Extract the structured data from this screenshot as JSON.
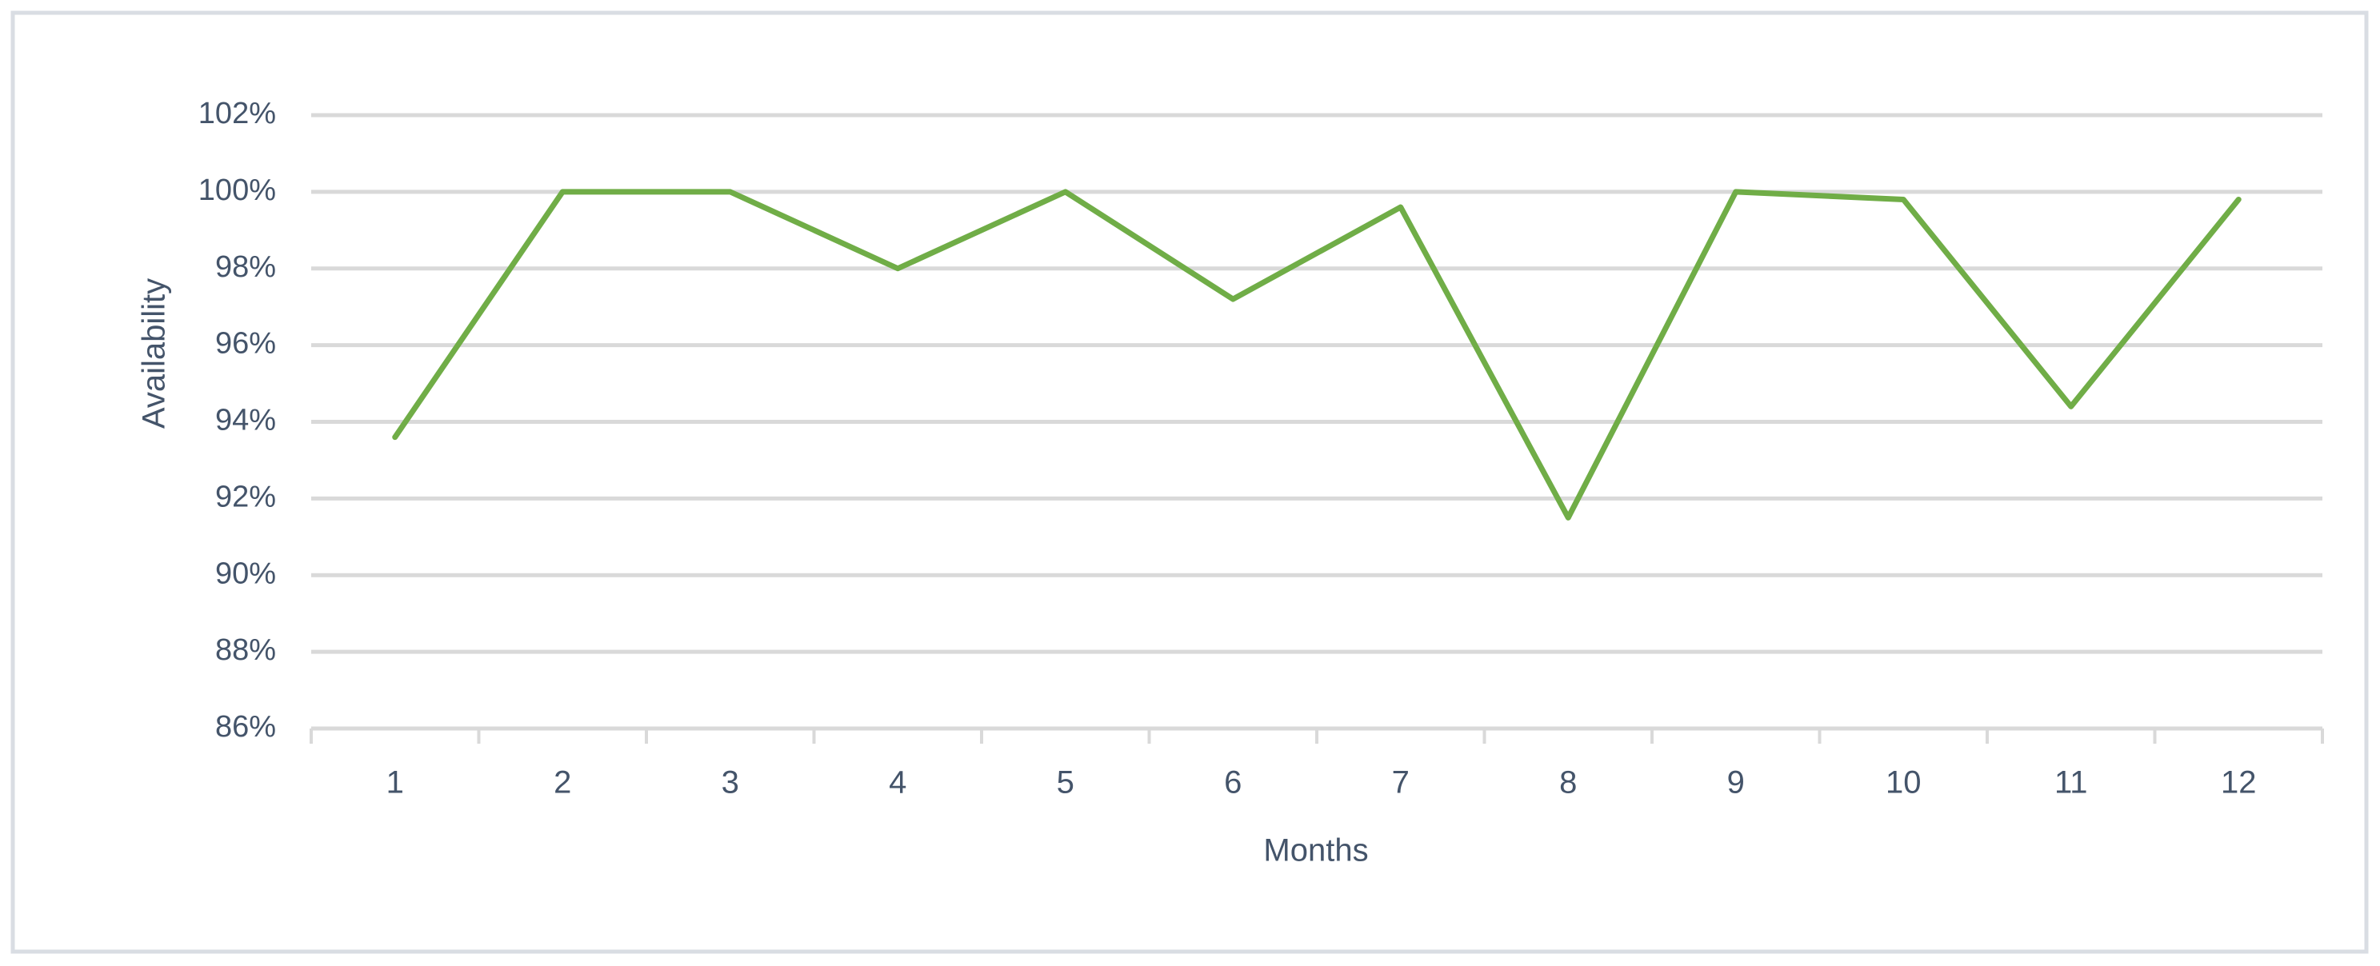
{
  "chart_data": {
    "type": "line",
    "x_label": "Months",
    "y_label": "Availability",
    "categories": [
      "1",
      "2",
      "3",
      "4",
      "5",
      "6",
      "7",
      "8",
      "9",
      "10",
      "11",
      "12"
    ],
    "values": [
      93.6,
      100,
      100,
      98,
      100,
      97.2,
      99.6,
      91.5,
      100,
      99.8,
      94.4,
      99.8
    ],
    "color": "#70ad47",
    "ylim": [
      86,
      102
    ],
    "yticks": [
      {
        "value": 86,
        "label": "86%"
      },
      {
        "value": 88,
        "label": "88%"
      },
      {
        "value": 90,
        "label": "90%"
      },
      {
        "value": 92,
        "label": "92%"
      },
      {
        "value": 94,
        "label": "94%"
      },
      {
        "value": 96,
        "label": "96%"
      },
      {
        "value": 98,
        "label": "98%"
      },
      {
        "value": 100,
        "label": "100%"
      },
      {
        "value": 102,
        "label": "102%"
      }
    ],
    "grid": true
  }
}
